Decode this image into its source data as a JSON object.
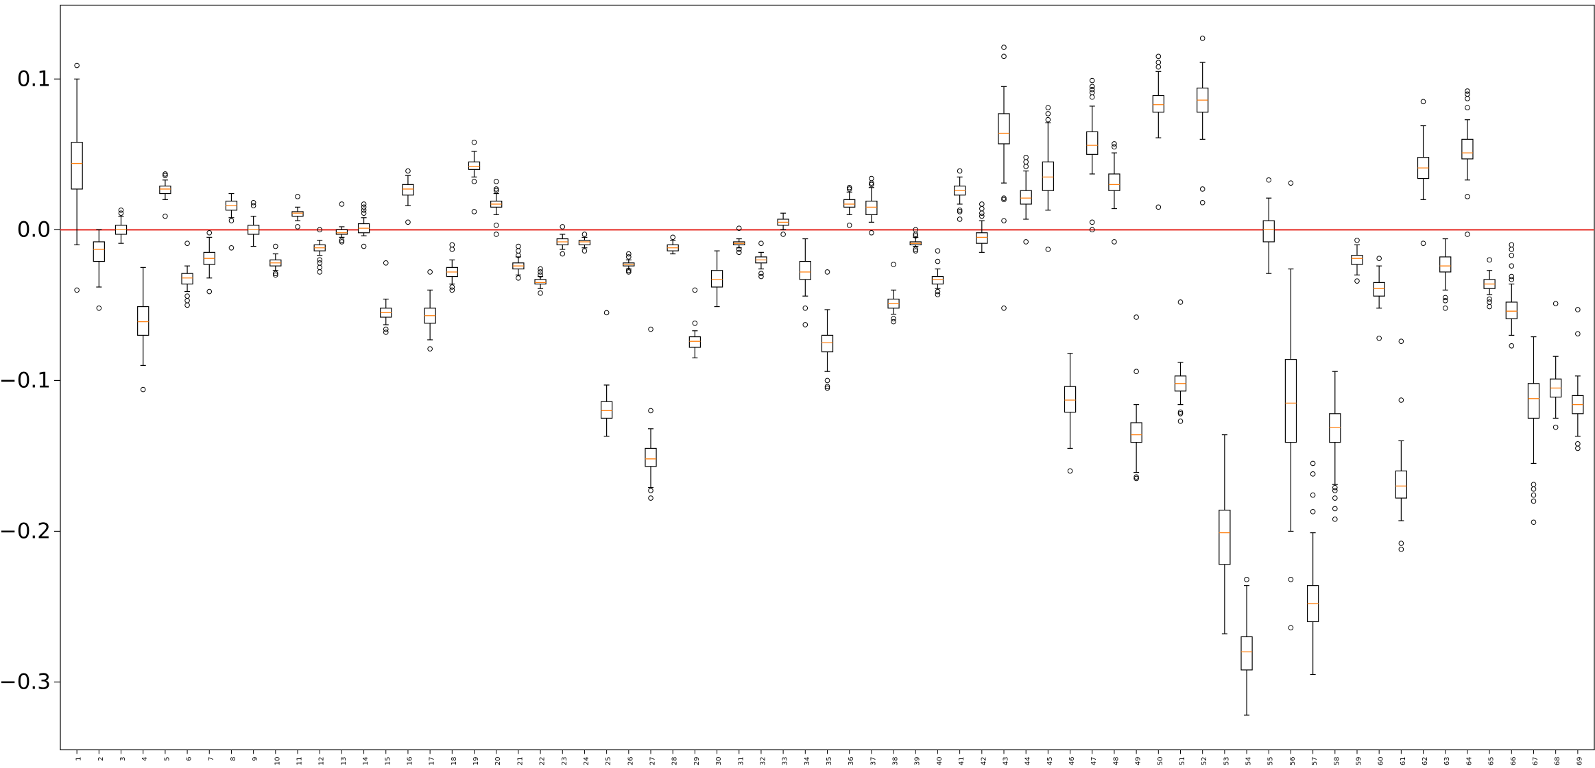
{
  "chart_data": {
    "type": "box",
    "title": "",
    "xlabel": "",
    "ylabel": "",
    "ylim": [
      -0.345,
      0.149
    ],
    "yticks": [
      0.1,
      0.0,
      -0.1,
      -0.2,
      -0.3
    ],
    "ytick_labels": [
      "0.1",
      "0.0",
      "−0.1",
      "−0.2",
      "−0.3"
    ],
    "reference_line": {
      "y": 0.0,
      "color": "#e8413a"
    },
    "median_color": "#ff7f0e",
    "grid": false,
    "boxes": [
      {
        "label": "1",
        "whislo": -0.01,
        "q1": 0.027,
        "med": 0.044,
        "q3": 0.058,
        "whishi": 0.1,
        "fliers": [
          0.109,
          -0.04
        ]
      },
      {
        "label": "2",
        "whislo": -0.038,
        "q1": -0.021,
        "med": -0.013,
        "q3": -0.008,
        "whishi": 0.0,
        "fliers": [
          -0.052
        ]
      },
      {
        "label": "3",
        "whislo": -0.009,
        "q1": -0.003,
        "med": 0.0,
        "q3": 0.003,
        "whishi": 0.009,
        "fliers": [
          0.011,
          0.013
        ]
      },
      {
        "label": "4",
        "whislo": -0.09,
        "q1": -0.07,
        "med": -0.061,
        "q3": -0.051,
        "whishi": -0.025,
        "fliers": [
          -0.106
        ]
      },
      {
        "label": "5",
        "whislo": 0.02,
        "q1": 0.024,
        "med": 0.027,
        "q3": 0.029,
        "whishi": 0.033,
        "fliers": [
          0.036,
          0.037,
          0.009
        ]
      },
      {
        "label": "6",
        "whislo": -0.041,
        "q1": -0.036,
        "med": -0.032,
        "q3": -0.029,
        "whishi": -0.024,
        "fliers": [
          -0.009,
          -0.044,
          -0.047,
          -0.05
        ]
      },
      {
        "label": "7",
        "whislo": -0.032,
        "q1": -0.023,
        "med": -0.019,
        "q3": -0.015,
        "whishi": -0.005,
        "fliers": [
          -0.002,
          -0.041
        ]
      },
      {
        "label": "8",
        "whislo": 0.008,
        "q1": 0.013,
        "med": 0.016,
        "q3": 0.019,
        "whishi": 0.024,
        "fliers": [
          0.006,
          -0.012
        ]
      },
      {
        "label": "9",
        "whislo": -0.011,
        "q1": -0.003,
        "med": 0.0,
        "q3": 0.003,
        "whishi": 0.009,
        "fliers": [
          0.016,
          0.018
        ]
      },
      {
        "label": "10",
        "whislo": -0.027,
        "q1": -0.024,
        "med": -0.022,
        "q3": -0.02,
        "whishi": -0.016,
        "fliers": [
          -0.011,
          -0.029,
          -0.03
        ]
      },
      {
        "label": "11",
        "whislo": 0.006,
        "q1": 0.009,
        "med": 0.011,
        "q3": 0.012,
        "whishi": 0.015,
        "fliers": [
          0.022,
          0.002
        ]
      },
      {
        "label": "12",
        "whislo": -0.017,
        "q1": -0.014,
        "med": -0.012,
        "q3": -0.01,
        "whishi": -0.007,
        "fliers": [
          0.0,
          -0.02,
          -0.022,
          -0.025,
          -0.028
        ]
      },
      {
        "label": "13",
        "whislo": -0.005,
        "q1": -0.003,
        "med": -0.002,
        "q3": 0.0,
        "whishi": 0.002,
        "fliers": [
          0.017,
          -0.007,
          -0.008
        ]
      },
      {
        "label": "14",
        "whislo": -0.004,
        "q1": -0.002,
        "med": 0.001,
        "q3": 0.004,
        "whishi": 0.008,
        "fliers": [
          0.011,
          0.013,
          0.015,
          0.017,
          -0.011
        ]
      },
      {
        "label": "15",
        "whislo": -0.063,
        "q1": -0.058,
        "med": -0.055,
        "q3": -0.052,
        "whishi": -0.046,
        "fliers": [
          -0.022,
          -0.066,
          -0.068
        ]
      },
      {
        "label": "16",
        "whislo": 0.016,
        "q1": 0.023,
        "med": 0.027,
        "q3": 0.03,
        "whishi": 0.036,
        "fliers": [
          0.039,
          0.005
        ]
      },
      {
        "label": "17",
        "whislo": -0.073,
        "q1": -0.062,
        "med": -0.057,
        "q3": -0.052,
        "whishi": -0.04,
        "fliers": [
          -0.028,
          -0.079
        ]
      },
      {
        "label": "18",
        "whislo": -0.036,
        "q1": -0.031,
        "med": -0.028,
        "q3": -0.025,
        "whishi": -0.02,
        "fliers": [
          -0.01,
          -0.013,
          -0.038,
          -0.04
        ]
      },
      {
        "label": "19",
        "whislo": 0.035,
        "q1": 0.04,
        "med": 0.042,
        "q3": 0.045,
        "whishi": 0.052,
        "fliers": [
          0.058,
          0.032,
          0.012
        ]
      },
      {
        "label": "20",
        "whislo": 0.01,
        "q1": 0.015,
        "med": 0.017,
        "q3": 0.019,
        "whishi": 0.024,
        "fliers": [
          0.026,
          0.027,
          0.032,
          0.003,
          -0.003
        ]
      },
      {
        "label": "21",
        "whislo": -0.03,
        "q1": -0.026,
        "med": -0.024,
        "q3": -0.022,
        "whishi": -0.018,
        "fliers": [
          -0.011,
          -0.014,
          -0.017,
          -0.032
        ]
      },
      {
        "label": "22",
        "whislo": -0.039,
        "q1": -0.036,
        "med": -0.035,
        "q3": -0.033,
        "whishi": -0.031,
        "fliers": [
          -0.026,
          -0.028,
          -0.03,
          -0.042
        ]
      },
      {
        "label": "23",
        "whislo": -0.013,
        "q1": -0.01,
        "med": -0.008,
        "q3": -0.006,
        "whishi": -0.003,
        "fliers": [
          0.002,
          -0.016
        ]
      },
      {
        "label": "24",
        "whislo": -0.012,
        "q1": -0.01,
        "med": -0.008,
        "q3": -0.007,
        "whishi": -0.005,
        "fliers": [
          -0.003,
          -0.014
        ]
      },
      {
        "label": "25",
        "whislo": -0.137,
        "q1": -0.125,
        "med": -0.12,
        "q3": -0.114,
        "whishi": -0.103,
        "fliers": [
          -0.055
        ]
      },
      {
        "label": "26",
        "whislo": -0.026,
        "q1": -0.024,
        "med": -0.023,
        "q3": -0.022,
        "whishi": -0.02,
        "fliers": [
          -0.016,
          -0.018,
          -0.027,
          -0.028
        ]
      },
      {
        "label": "27",
        "whislo": -0.171,
        "q1": -0.157,
        "med": -0.152,
        "q3": -0.145,
        "whishi": -0.132,
        "fliers": [
          -0.066,
          -0.12,
          -0.173,
          -0.178
        ]
      },
      {
        "label": "28",
        "whislo": -0.016,
        "q1": -0.014,
        "med": -0.012,
        "q3": -0.01,
        "whishi": -0.007,
        "fliers": [
          -0.005
        ]
      },
      {
        "label": "29",
        "whislo": -0.085,
        "q1": -0.078,
        "med": -0.074,
        "q3": -0.071,
        "whishi": -0.067,
        "fliers": [
          -0.04,
          -0.062
        ]
      },
      {
        "label": "30",
        "whislo": -0.051,
        "q1": -0.038,
        "med": -0.033,
        "q3": -0.027,
        "whishi": -0.014,
        "fliers": []
      },
      {
        "label": "31",
        "whislo": -0.012,
        "q1": -0.01,
        "med": -0.009,
        "q3": -0.008,
        "whishi": -0.006,
        "fliers": [
          0.001,
          -0.013,
          -0.015
        ]
      },
      {
        "label": "32",
        "whislo": -0.026,
        "q1": -0.022,
        "med": -0.02,
        "q3": -0.018,
        "whishi": -0.015,
        "fliers": [
          -0.009,
          -0.029,
          -0.031
        ]
      },
      {
        "label": "33",
        "whislo": 0.0,
        "q1": 0.003,
        "med": 0.005,
        "q3": 0.007,
        "whishi": 0.011,
        "fliers": [
          -0.003
        ]
      },
      {
        "label": "34",
        "whislo": -0.044,
        "q1": -0.033,
        "med": -0.028,
        "q3": -0.021,
        "whishi": -0.006,
        "fliers": [
          -0.052,
          -0.063
        ]
      },
      {
        "label": "35",
        "whislo": -0.094,
        "q1": -0.081,
        "med": -0.075,
        "q3": -0.07,
        "whishi": -0.053,
        "fliers": [
          -0.028,
          -0.1,
          -0.104,
          -0.105
        ]
      },
      {
        "label": "36",
        "whislo": 0.01,
        "q1": 0.015,
        "med": 0.017,
        "q3": 0.02,
        "whishi": 0.025,
        "fliers": [
          0.027,
          0.028,
          0.003
        ]
      },
      {
        "label": "37",
        "whislo": 0.005,
        "q1": 0.01,
        "med": 0.015,
        "q3": 0.019,
        "whishi": 0.028,
        "fliers": [
          0.03,
          0.031,
          0.034,
          -0.002
        ]
      },
      {
        "label": "38",
        "whislo": -0.056,
        "q1": -0.052,
        "med": -0.049,
        "q3": -0.046,
        "whishi": -0.04,
        "fliers": [
          -0.023,
          -0.059,
          -0.061
        ]
      },
      {
        "label": "39",
        "whislo": -0.011,
        "q1": -0.01,
        "med": -0.009,
        "q3": -0.008,
        "whishi": -0.005,
        "fliers": [
          0.0,
          -0.003,
          -0.004,
          -0.013,
          -0.014
        ]
      },
      {
        "label": "40",
        "whislo": -0.039,
        "q1": -0.036,
        "med": -0.033,
        "q3": -0.031,
        "whishi": -0.026,
        "fliers": [
          -0.014,
          -0.021,
          -0.041,
          -0.043
        ]
      },
      {
        "label": "41",
        "whislo": 0.017,
        "q1": 0.023,
        "med": 0.026,
        "q3": 0.029,
        "whishi": 0.035,
        "fliers": [
          0.039,
          0.013,
          0.012,
          0.007
        ]
      },
      {
        "label": "42",
        "whislo": -0.015,
        "q1": -0.009,
        "med": -0.005,
        "q3": -0.002,
        "whishi": 0.006,
        "fliers": [
          0.009,
          0.011,
          0.014,
          0.017
        ]
      },
      {
        "label": "43",
        "whislo": 0.031,
        "q1": 0.057,
        "med": 0.064,
        "q3": 0.077,
        "whishi": 0.095,
        "fliers": [
          0.115,
          0.121,
          0.021,
          0.02,
          0.006,
          -0.052
        ]
      },
      {
        "label": "44",
        "whislo": 0.007,
        "q1": 0.017,
        "med": 0.021,
        "q3": 0.026,
        "whishi": 0.039,
        "fliers": [
          0.042,
          0.045,
          0.048,
          -0.008
        ]
      },
      {
        "label": "45",
        "whislo": 0.013,
        "q1": 0.026,
        "med": 0.035,
        "q3": 0.045,
        "whishi": 0.071,
        "fliers": [
          0.073,
          0.077,
          0.081,
          -0.013
        ]
      },
      {
        "label": "46",
        "whislo": -0.145,
        "q1": -0.121,
        "med": -0.113,
        "q3": -0.104,
        "whishi": -0.082,
        "fliers": [
          -0.16
        ]
      },
      {
        "label": "47",
        "whislo": 0.037,
        "q1": 0.05,
        "med": 0.056,
        "q3": 0.065,
        "whishi": 0.082,
        "fliers": [
          0.088,
          0.091,
          0.093,
          0.095,
          0.099,
          0.005,
          0.0
        ]
      },
      {
        "label": "48",
        "whislo": 0.014,
        "q1": 0.026,
        "med": 0.03,
        "q3": 0.037,
        "whishi": 0.051,
        "fliers": [
          0.055,
          0.057,
          -0.008
        ]
      },
      {
        "label": "49",
        "whislo": -0.161,
        "q1": -0.141,
        "med": -0.136,
        "q3": -0.128,
        "whishi": -0.116,
        "fliers": [
          -0.058,
          -0.094,
          -0.164,
          -0.165
        ]
      },
      {
        "label": "50",
        "whislo": 0.061,
        "q1": 0.078,
        "med": 0.083,
        "q3": 0.089,
        "whishi": 0.105,
        "fliers": [
          0.108,
          0.111,
          0.115,
          0.015
        ]
      },
      {
        "label": "51",
        "whislo": -0.116,
        "q1": -0.107,
        "med": -0.102,
        "q3": -0.097,
        "whishi": -0.088,
        "fliers": [
          -0.048,
          -0.121,
          -0.122,
          -0.127
        ]
      },
      {
        "label": "52",
        "whislo": 0.06,
        "q1": 0.078,
        "med": 0.086,
        "q3": 0.094,
        "whishi": 0.111,
        "fliers": [
          0.127,
          0.027,
          0.018
        ]
      },
      {
        "label": "53",
        "whislo": -0.268,
        "q1": -0.222,
        "med": -0.201,
        "q3": -0.186,
        "whishi": -0.136,
        "fliers": []
      },
      {
        "label": "54",
        "whislo": -0.322,
        "q1": -0.292,
        "med": -0.28,
        "q3": -0.27,
        "whishi": -0.236,
        "fliers": [
          -0.232
        ]
      },
      {
        "label": "55",
        "whislo": -0.029,
        "q1": -0.008,
        "med": 0.0,
        "q3": 0.006,
        "whishi": 0.021,
        "fliers": [
          0.033
        ]
      },
      {
        "label": "56",
        "whislo": -0.2,
        "q1": -0.141,
        "med": -0.115,
        "q3": -0.086,
        "whishi": -0.026,
        "fliers": [
          0.031,
          -0.232,
          -0.264
        ]
      },
      {
        "label": "57",
        "whislo": -0.295,
        "q1": -0.26,
        "med": -0.248,
        "q3": -0.236,
        "whishi": -0.201,
        "fliers": [
          -0.155,
          -0.162,
          -0.176,
          -0.187
        ]
      },
      {
        "label": "58",
        "whislo": -0.169,
        "q1": -0.141,
        "med": -0.131,
        "q3": -0.122,
        "whishi": -0.094,
        "fliers": [
          -0.171,
          -0.173,
          -0.178,
          -0.185,
          -0.192
        ]
      },
      {
        "label": "59",
        "whislo": -0.03,
        "q1": -0.023,
        "med": -0.019,
        "q3": -0.017,
        "whishi": -0.01,
        "fliers": [
          -0.007,
          -0.034
        ]
      },
      {
        "label": "60",
        "whislo": -0.052,
        "q1": -0.044,
        "med": -0.039,
        "q3": -0.035,
        "whishi": -0.024,
        "fliers": [
          -0.019,
          -0.072
        ]
      },
      {
        "label": "61",
        "whislo": -0.193,
        "q1": -0.178,
        "med": -0.17,
        "q3": -0.16,
        "whishi": -0.14,
        "fliers": [
          -0.074,
          -0.113,
          -0.208,
          -0.212
        ]
      },
      {
        "label": "62",
        "whislo": 0.02,
        "q1": 0.034,
        "med": 0.041,
        "q3": 0.048,
        "whishi": 0.069,
        "fliers": [
          0.085,
          -0.009
        ]
      },
      {
        "label": "63",
        "whislo": -0.04,
        "q1": -0.028,
        "med": -0.024,
        "q3": -0.018,
        "whishi": -0.006,
        "fliers": [
          -0.045,
          -0.047,
          -0.052
        ]
      },
      {
        "label": "64",
        "whislo": 0.033,
        "q1": 0.047,
        "med": 0.051,
        "q3": 0.06,
        "whishi": 0.073,
        "fliers": [
          0.081,
          0.087,
          0.09,
          0.092,
          0.022,
          -0.003
        ]
      },
      {
        "label": "65",
        "whislo": -0.043,
        "q1": -0.039,
        "med": -0.036,
        "q3": -0.033,
        "whishi": -0.027,
        "fliers": [
          -0.02,
          -0.046,
          -0.048,
          -0.051
        ]
      },
      {
        "label": "66",
        "whislo": -0.07,
        "q1": -0.059,
        "med": -0.054,
        "q3": -0.048,
        "whishi": -0.036,
        "fliers": [
          -0.01,
          -0.013,
          -0.017,
          -0.024,
          -0.031,
          -0.033,
          -0.077
        ]
      },
      {
        "label": "67",
        "whislo": -0.155,
        "q1": -0.125,
        "med": -0.112,
        "q3": -0.102,
        "whishi": -0.071,
        "fliers": [
          -0.169,
          -0.172,
          -0.176,
          -0.18,
          -0.194
        ]
      },
      {
        "label": "68",
        "whislo": -0.125,
        "q1": -0.111,
        "med": -0.105,
        "q3": -0.099,
        "whishi": -0.084,
        "fliers": [
          -0.049,
          -0.131
        ]
      },
      {
        "label": "69",
        "whislo": -0.137,
        "q1": -0.122,
        "med": -0.116,
        "q3": -0.11,
        "whishi": -0.097,
        "fliers": [
          -0.053,
          -0.069,
          -0.142,
          -0.145
        ]
      }
    ]
  }
}
